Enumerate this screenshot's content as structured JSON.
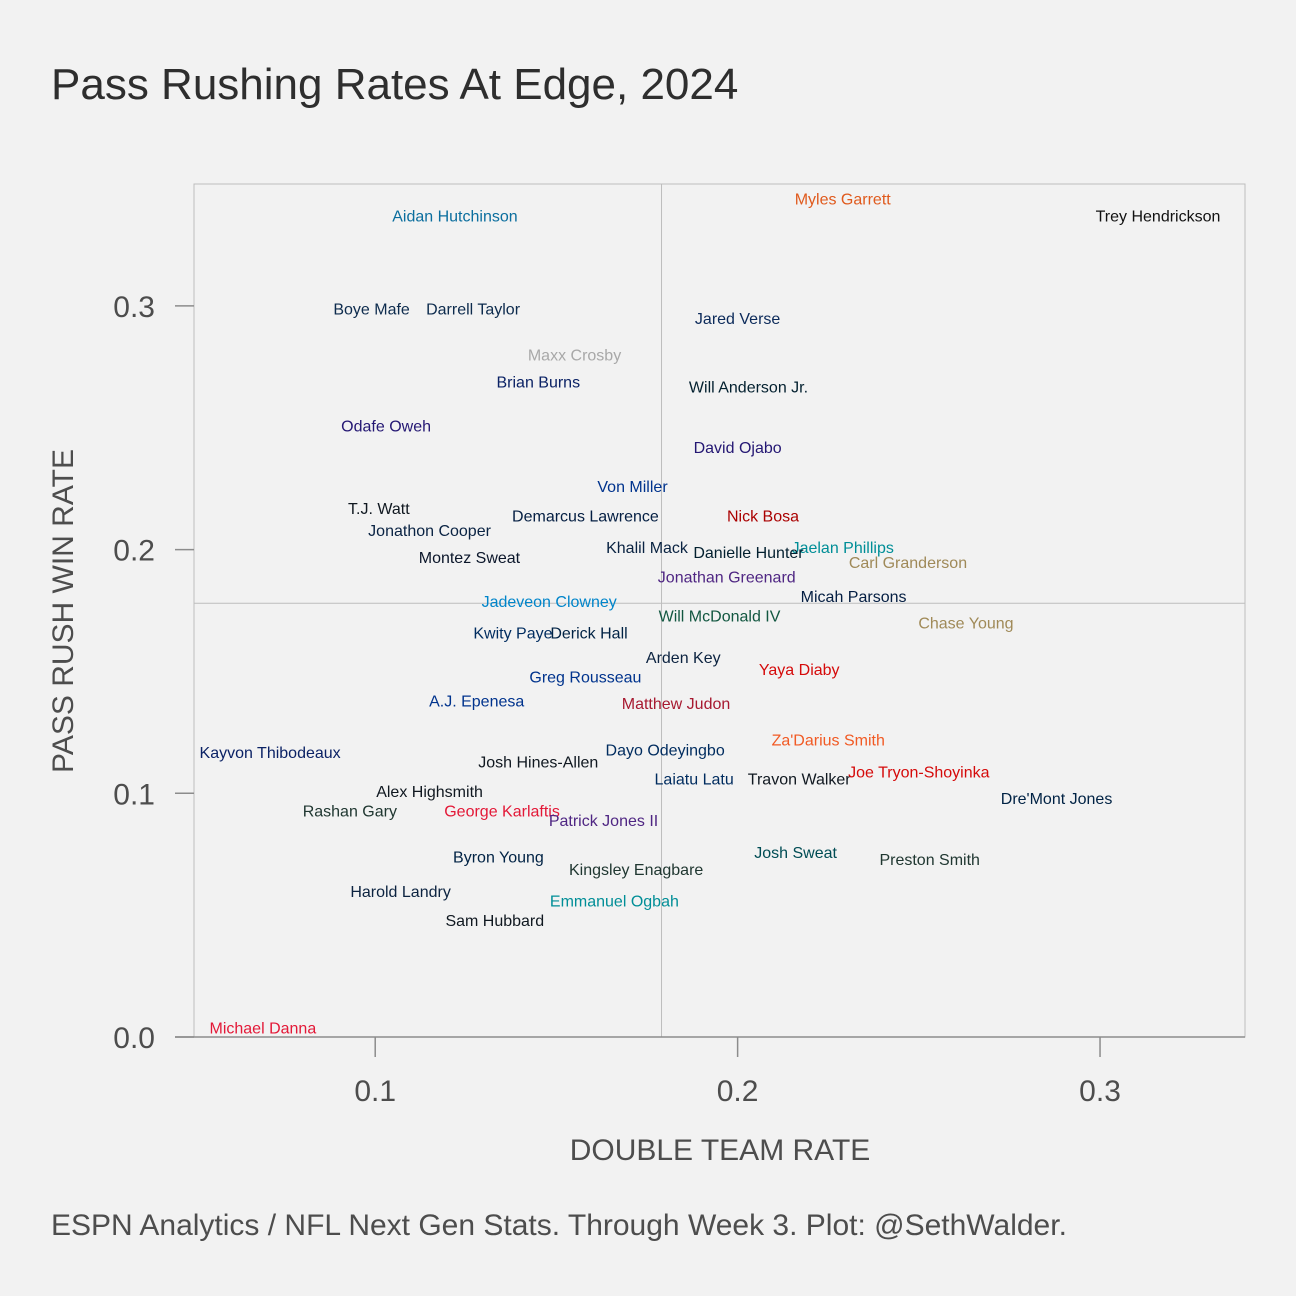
{
  "title": "Pass Rushing Rates At Edge, 2024",
  "caption": "ESPN Analytics / NFL Next Gen Stats. Through Week 3. Plot: @SethWalder.",
  "chart_data": {
    "type": "scatter",
    "title": "Pass Rushing Rates At Edge, 2024",
    "xlabel": "DOUBLE TEAM RATE",
    "ylabel": "PASS RUSH WIN RATE",
    "xlim": [
      0.05,
      0.34
    ],
    "ylim": [
      0.0,
      0.35
    ],
    "xticks": [
      0.1,
      0.2,
      0.3
    ],
    "xtick_labels": [
      "0.1",
      "0.2",
      "0.3"
    ],
    "yticks": [
      0.0,
      0.1,
      0.2,
      0.3
    ],
    "ytick_labels": [
      "0.0",
      "0.1",
      "0.2",
      "0.3"
    ],
    "reference_lines": {
      "x": 0.179,
      "y": 0.178
    },
    "grid": false,
    "points": [
      {
        "label": "Aidan Hutchinson",
        "x": 0.122,
        "y": 0.337,
        "color": "#0b6e9e"
      },
      {
        "label": "Myles Garrett",
        "x": 0.229,
        "y": 0.344,
        "color": "#e05a1d"
      },
      {
        "label": "Trey Hendrickson",
        "x": 0.316,
        "y": 0.337,
        "color": "#111111"
      },
      {
        "label": "Boye Mafe",
        "x": 0.099,
        "y": 0.299,
        "color": "#0d2b4d"
      },
      {
        "label": "Darrell Taylor",
        "x": 0.127,
        "y": 0.299,
        "color": "#0d2b4d"
      },
      {
        "label": "Jared Verse",
        "x": 0.2,
        "y": 0.295,
        "color": "#0c2a5a"
      },
      {
        "label": "Maxx Crosby",
        "x": 0.155,
        "y": 0.28,
        "color": "#a8a8a8"
      },
      {
        "label": "Brian Burns",
        "x": 0.145,
        "y": 0.269,
        "color": "#0b2265"
      },
      {
        "label": "Will Anderson Jr.",
        "x": 0.203,
        "y": 0.267,
        "color": "#03202f"
      },
      {
        "label": "Odafe Oweh",
        "x": 0.103,
        "y": 0.251,
        "color": "#241773"
      },
      {
        "label": "David Ojabo",
        "x": 0.2,
        "y": 0.242,
        "color": "#241773"
      },
      {
        "label": "Von Miller",
        "x": 0.171,
        "y": 0.226,
        "color": "#00338d"
      },
      {
        "label": "T.J. Watt",
        "x": 0.101,
        "y": 0.217,
        "color": "#101820"
      },
      {
        "label": "Demarcus Lawrence",
        "x": 0.158,
        "y": 0.214,
        "color": "#041e42"
      },
      {
        "label": "Nick Bosa",
        "x": 0.207,
        "y": 0.214,
        "color": "#aa0000"
      },
      {
        "label": "Jonathon Cooper",
        "x": 0.115,
        "y": 0.208,
        "color": "#0a2343"
      },
      {
        "label": "Khalil Mack",
        "x": 0.175,
        "y": 0.201,
        "color": "#0a2342"
      },
      {
        "label": "Jaelan Phillips",
        "x": 0.229,
        "y": 0.201,
        "color": "#008e97"
      },
      {
        "label": "Danielle Hunter",
        "x": 0.203,
        "y": 0.199,
        "color": "#03202f"
      },
      {
        "label": "Montez Sweat",
        "x": 0.126,
        "y": 0.197,
        "color": "#0b162a"
      },
      {
        "label": "Carl Granderson",
        "x": 0.247,
        "y": 0.195,
        "color": "#9f8958"
      },
      {
        "label": "Jonathan Greenard",
        "x": 0.197,
        "y": 0.189,
        "color": "#4f2683"
      },
      {
        "label": "Micah Parsons",
        "x": 0.232,
        "y": 0.181,
        "color": "#041e42"
      },
      {
        "label": "Jadeveon Clowney",
        "x": 0.148,
        "y": 0.179,
        "color": "#0085ca"
      },
      {
        "label": "Will McDonald IV",
        "x": 0.195,
        "y": 0.173,
        "color": "#125740"
      },
      {
        "label": "Chase Young",
        "x": 0.263,
        "y": 0.17,
        "color": "#a08a58"
      },
      {
        "label": "Kwity Paye",
        "x": 0.138,
        "y": 0.166,
        "color": "#002c5f"
      },
      {
        "label": "Derick Hall",
        "x": 0.159,
        "y": 0.166,
        "color": "#002244"
      },
      {
        "label": "Arden Key",
        "x": 0.185,
        "y": 0.156,
        "color": "#0c2340"
      },
      {
        "label": "Yaya Diaby",
        "x": 0.217,
        "y": 0.151,
        "color": "#d50a0a"
      },
      {
        "label": "Greg Rousseau",
        "x": 0.158,
        "y": 0.148,
        "color": "#00338d"
      },
      {
        "label": "A.J. Epenesa",
        "x": 0.128,
        "y": 0.138,
        "color": "#00338d"
      },
      {
        "label": "Matthew Judon",
        "x": 0.183,
        "y": 0.137,
        "color": "#a71930"
      },
      {
        "label": "Za'Darius Smith",
        "x": 0.225,
        "y": 0.122,
        "color": "#f15a24"
      },
      {
        "label": "Dayo Odeyingbo",
        "x": 0.18,
        "y": 0.118,
        "color": "#002c5f"
      },
      {
        "label": "Kayvon Thibodeaux",
        "x": 0.071,
        "y": 0.117,
        "color": "#0b2265"
      },
      {
        "label": "Josh Hines-Allen",
        "x": 0.145,
        "y": 0.113,
        "color": "#101820"
      },
      {
        "label": "Laiatu Latu",
        "x": 0.188,
        "y": 0.106,
        "color": "#002c5f"
      },
      {
        "label": "Travon Walker",
        "x": 0.217,
        "y": 0.106,
        "color": "#101820"
      },
      {
        "label": "Joe Tryon-Shoyinka",
        "x": 0.25,
        "y": 0.109,
        "color": "#d50a0a"
      },
      {
        "label": "Alex Highsmith",
        "x": 0.115,
        "y": 0.101,
        "color": "#101820"
      },
      {
        "label": "Dre'Mont Jones",
        "x": 0.288,
        "y": 0.098,
        "color": "#002244"
      },
      {
        "label": "Rashan Gary",
        "x": 0.093,
        "y": 0.093,
        "color": "#203731"
      },
      {
        "label": "George Karlaftis",
        "x": 0.135,
        "y": 0.093,
        "color": "#e31837"
      },
      {
        "label": "Patrick Jones II",
        "x": 0.163,
        "y": 0.089,
        "color": "#4f2683"
      },
      {
        "label": "Byron Young",
        "x": 0.134,
        "y": 0.074,
        "color": "#002244"
      },
      {
        "label": "Josh Sweat",
        "x": 0.216,
        "y": 0.076,
        "color": "#004c54"
      },
      {
        "label": "Preston Smith",
        "x": 0.253,
        "y": 0.073,
        "color": "#203731"
      },
      {
        "label": "Kingsley Enagbare",
        "x": 0.172,
        "y": 0.069,
        "color": "#203731"
      },
      {
        "label": "Harold Landry",
        "x": 0.107,
        "y": 0.06,
        "color": "#0c2340"
      },
      {
        "label": "Emmanuel Ogbah",
        "x": 0.166,
        "y": 0.056,
        "color": "#008e97"
      },
      {
        "label": "Sam Hubbard",
        "x": 0.133,
        "y": 0.048,
        "color": "#101820"
      },
      {
        "label": "Michael Danna",
        "x": 0.069,
        "y": 0.004,
        "color": "#e31837"
      }
    ]
  }
}
